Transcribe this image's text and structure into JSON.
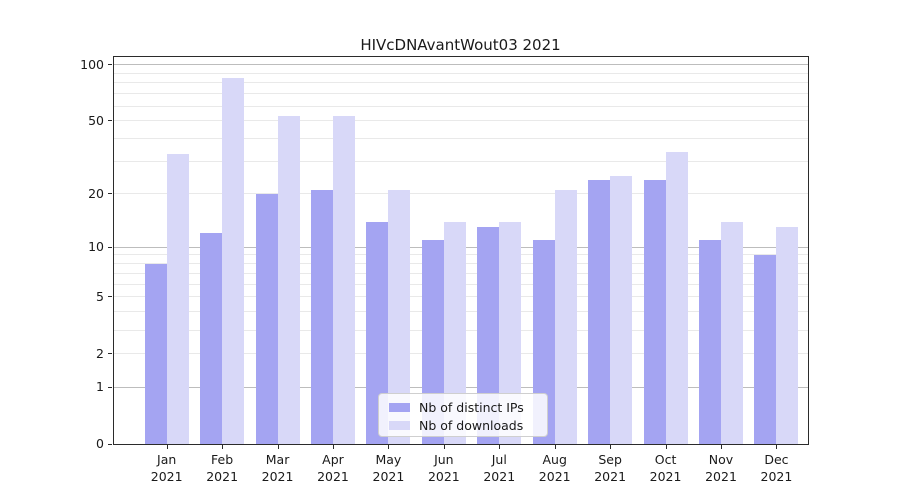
{
  "title": "HIVcDNAvantWout03 2021",
  "chart_data": {
    "type": "bar",
    "categories": [
      "Jan 2021",
      "Feb 2021",
      "Mar 2021",
      "Apr 2021",
      "May 2021",
      "Jun 2021",
      "Jul 2021",
      "Aug 2021",
      "Sep 2021",
      "Oct 2021",
      "Nov 2021",
      "Dec 2021"
    ],
    "series": [
      {
        "name": "Nb of distinct IPs",
        "color": "#a4a4f2",
        "values": [
          8,
          12,
          20,
          21,
          14,
          11,
          13,
          11,
          24,
          24,
          11,
          9
        ]
      },
      {
        "name": "Nb of downloads",
        "color": "#d8d8f8",
        "values": [
          33,
          85,
          53,
          53,
          21,
          14,
          14,
          21,
          25,
          34,
          14,
          13
        ]
      }
    ],
    "title": "HIVcDNAvantWout03 2021",
    "xlabel": "",
    "ylabel": "",
    "yscale": "log1p",
    "ylim": [
      0,
      110
    ],
    "ytick_labels": [
      "0",
      "1",
      "2",
      "5",
      "10",
      "20",
      "50",
      "100"
    ],
    "ytick_values": [
      0,
      1,
      2,
      5,
      10,
      20,
      50,
      100
    ],
    "major_gridlines": [
      1,
      10,
      100
    ],
    "minor_gridlines": [
      2,
      3,
      4,
      5,
      6,
      7,
      8,
      9,
      20,
      30,
      40,
      50,
      60,
      70,
      80,
      90
    ],
    "grid": true,
    "legend_position": "lower center"
  },
  "legend": {
    "items": [
      {
        "label": "Nb of distinct IPs",
        "color": "#a4a4f2"
      },
      {
        "label": "Nb of downloads",
        "color": "#d8d8f8"
      }
    ]
  }
}
